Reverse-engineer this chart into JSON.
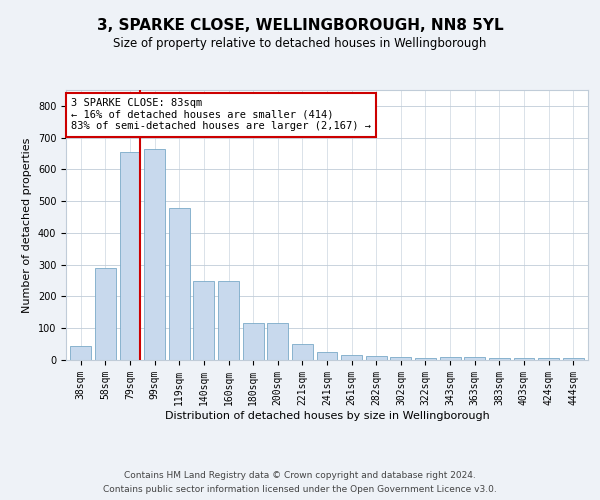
{
  "title": "3, SPARKE CLOSE, WELLINGBOROUGH, NN8 5YL",
  "subtitle": "Size of property relative to detached houses in Wellingborough",
  "xlabel": "Distribution of detached houses by size in Wellingborough",
  "ylabel": "Number of detached properties",
  "categories": [
    "38sqm",
    "58sqm",
    "79sqm",
    "99sqm",
    "119sqm",
    "140sqm",
    "160sqm",
    "180sqm",
    "200sqm",
    "221sqm",
    "241sqm",
    "261sqm",
    "282sqm",
    "302sqm",
    "322sqm",
    "343sqm",
    "363sqm",
    "383sqm",
    "403sqm",
    "424sqm",
    "444sqm"
  ],
  "values": [
    45,
    290,
    655,
    665,
    480,
    250,
    248,
    115,
    115,
    50,
    25,
    15,
    14,
    10,
    5,
    8,
    8,
    5,
    5,
    5,
    5
  ],
  "bar_color": "#c8d9ed",
  "bar_edge_color": "#7aaac8",
  "marker_bar_index": 2,
  "marker_color": "#cc0000",
  "annotation_text": "3 SPARKE CLOSE: 83sqm\n← 16% of detached houses are smaller (414)\n83% of semi-detached houses are larger (2,167) →",
  "annotation_box_color": "white",
  "annotation_box_edge_color": "#cc0000",
  "ylim": [
    0,
    850
  ],
  "yticks": [
    0,
    100,
    200,
    300,
    400,
    500,
    600,
    700,
    800
  ],
  "footer_line1": "Contains HM Land Registry data © Crown copyright and database right 2024.",
  "footer_line2": "Contains public sector information licensed under the Open Government Licence v3.0.",
  "background_color": "#eef2f7",
  "plot_background_color": "white",
  "grid_color": "#c0ccd8",
  "title_fontsize": 11,
  "subtitle_fontsize": 8.5,
  "axis_label_fontsize": 8,
  "tick_fontsize": 7,
  "annotation_fontsize": 7.5,
  "footer_fontsize": 6.5
}
